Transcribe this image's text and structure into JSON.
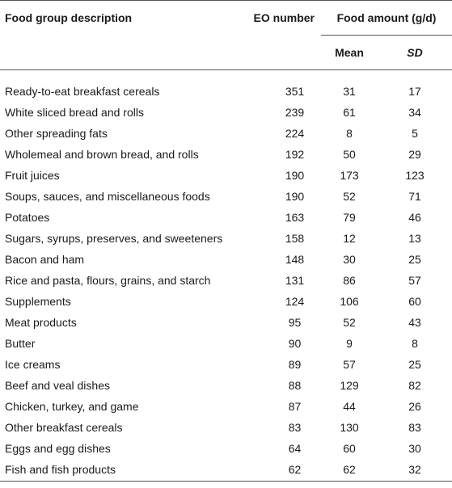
{
  "table": {
    "headers": {
      "description": "Food group description",
      "eo_number": "EO number",
      "food_amount": "Food amount (g/d)",
      "mean": "Mean",
      "sd": "SD"
    },
    "rows": [
      {
        "description": "Ready-to-eat breakfast cereals",
        "eo": "351",
        "mean": "31",
        "sd": "17"
      },
      {
        "description": "White sliced bread and rolls",
        "eo": "239",
        "mean": "61",
        "sd": "34"
      },
      {
        "description": "Other spreading fats",
        "eo": "224",
        "mean": "8",
        "sd": "5"
      },
      {
        "description": "Wholemeal and brown bread, and rolls",
        "eo": "192",
        "mean": "50",
        "sd": "29"
      },
      {
        "description": "Fruit juices",
        "eo": "190",
        "mean": "173",
        "sd": "123"
      },
      {
        "description": "Soups, sauces, and miscellaneous foods",
        "eo": "190",
        "mean": "52",
        "sd": "71"
      },
      {
        "description": "Potatoes",
        "eo": "163",
        "mean": "79",
        "sd": "46"
      },
      {
        "description": "Sugars, syrups, preserves, and sweeteners",
        "eo": "158",
        "mean": "12",
        "sd": "13"
      },
      {
        "description": "Bacon and ham",
        "eo": "148",
        "mean": "30",
        "sd": "25"
      },
      {
        "description": "Rice and pasta, flours, grains, and starch",
        "eo": "131",
        "mean": "86",
        "sd": "57"
      },
      {
        "description": "Supplements",
        "eo": "124",
        "mean": "106",
        "sd": "60"
      },
      {
        "description": "Meat products",
        "eo": "95",
        "mean": "52",
        "sd": "43"
      },
      {
        "description": "Butter",
        "eo": "90",
        "mean": "9",
        "sd": "8"
      },
      {
        "description": "Ice creams",
        "eo": "89",
        "mean": "57",
        "sd": "25"
      },
      {
        "description": "Beef and veal dishes",
        "eo": "88",
        "mean": "129",
        "sd": "82"
      },
      {
        "description": "Chicken, turkey, and game",
        "eo": "87",
        "mean": "44",
        "sd": "26"
      },
      {
        "description": "Other breakfast cereals",
        "eo": "83",
        "mean": "130",
        "sd": "83"
      },
      {
        "description": "Eggs and egg dishes",
        "eo": "64",
        "mean": "60",
        "sd": "30"
      },
      {
        "description": "Fish and fish products",
        "eo": "62",
        "mean": "62",
        "sd": "32"
      }
    ]
  }
}
